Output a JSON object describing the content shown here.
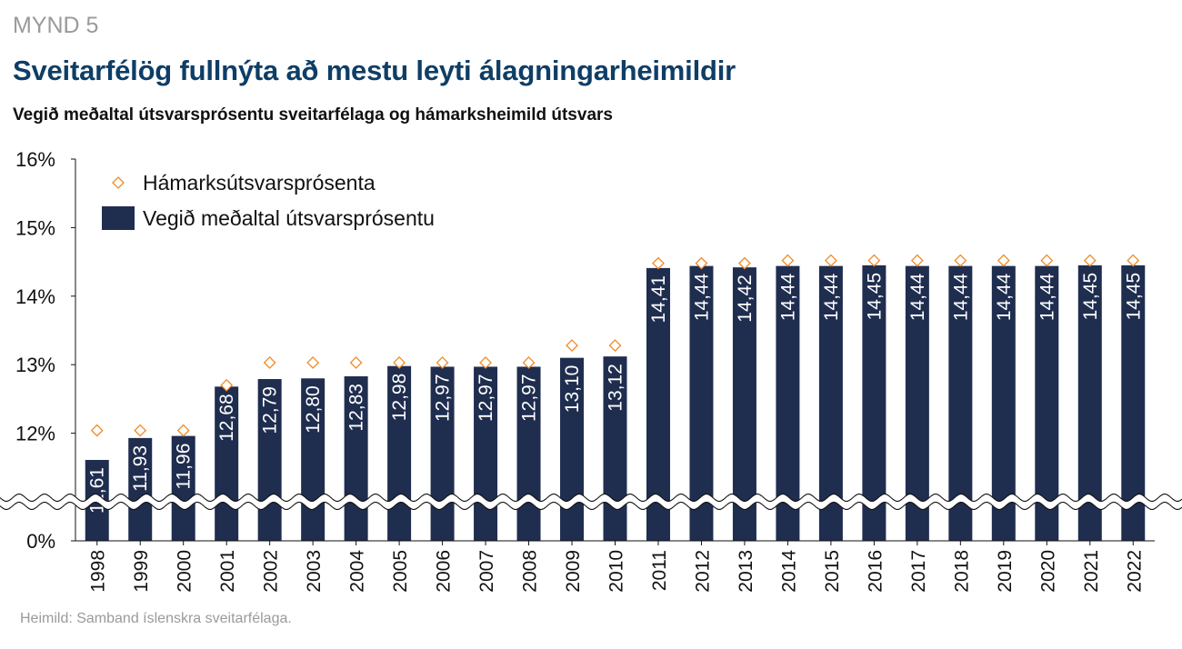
{
  "figure_label": "MYND 5",
  "title": "Sveitarfélög fullnýta að mestu leyti álagningarheimildir",
  "subtitle": "Vegið meðaltal útsvarsprósentu sveitarfélaga og hámarksheimild útsvars",
  "source": "Heimild: Samband íslenskra sveitarfélaga.",
  "colors": {
    "bar": "#1f2d4f",
    "marker": "#f08a24",
    "axis": "#111111"
  },
  "chart_data": {
    "type": "bar",
    "categories": [
      "1998",
      "1999",
      "2000",
      "2001",
      "2002",
      "2003",
      "2004",
      "2005",
      "2006",
      "2007",
      "2008",
      "2009",
      "2010",
      "2011",
      "2012",
      "2013",
      "2014",
      "2015",
      "2016",
      "2017",
      "2018",
      "2019",
      "2020",
      "2021",
      "2022"
    ],
    "series": [
      {
        "name": "Vegið meðaltal útsvarsprósentu",
        "type": "bar",
        "values": [
          11.61,
          11.93,
          11.96,
          12.68,
          12.79,
          12.8,
          12.83,
          12.98,
          12.97,
          12.97,
          12.97,
          13.1,
          13.12,
          14.41,
          14.44,
          14.42,
          14.44,
          14.44,
          14.45,
          14.44,
          14.44,
          14.44,
          14.44,
          14.45,
          14.45
        ],
        "labels": [
          "11,61",
          "11,93",
          "11,96",
          "12,68",
          "12,79",
          "12,80",
          "12,83",
          "12,98",
          "12,97",
          "12,97",
          "12,97",
          "13,10",
          "13,12",
          "14,41",
          "14,44",
          "14,42",
          "14,44",
          "14,44",
          "14,45",
          "14,44",
          "14,44",
          "14,44",
          "14,44",
          "14,45",
          "14,45"
        ]
      },
      {
        "name": "Hámarksútsvarsprósenta",
        "type": "scatter",
        "marker": "diamond",
        "values": [
          12.04,
          12.04,
          12.04,
          12.7,
          13.03,
          13.03,
          13.03,
          13.03,
          13.03,
          13.03,
          13.03,
          13.28,
          13.28,
          14.48,
          14.48,
          14.48,
          14.52,
          14.52,
          14.52,
          14.52,
          14.52,
          14.52,
          14.52,
          14.52,
          14.52
        ]
      }
    ],
    "y_axis": {
      "ticks": [
        "0%",
        "12%",
        "13%",
        "14%",
        "15%",
        "16%"
      ],
      "tick_values": [
        0,
        12,
        13,
        14,
        15,
        16
      ],
      "broken_range": [
        0,
        11
      ],
      "upper_range": [
        11,
        16
      ]
    },
    "legend": {
      "placement": "top-left",
      "items": [
        "Hámarksútsvarsprósenta",
        "Vegið meðaltal útsvarsprósentu"
      ]
    },
    "grid": false
  }
}
